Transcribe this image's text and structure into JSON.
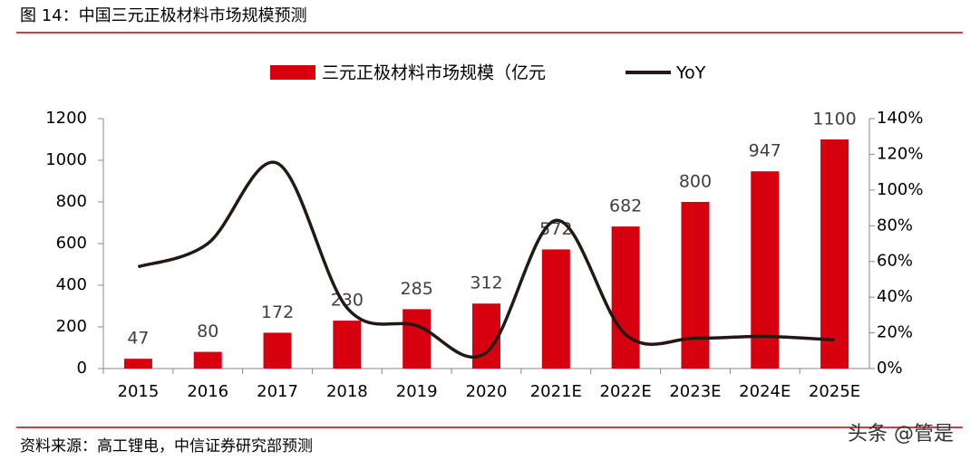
{
  "title": "图 14：中国三元正极材料市场规模预测",
  "source": "资料来源：高工锂电，中信证券研究部预测",
  "watermark": "头条 @管是",
  "chart_data": {
    "type": "bar-line",
    "categories": [
      "2015",
      "2016",
      "2017",
      "2018",
      "2019",
      "2020",
      "2021E",
      "2022E",
      "2023E",
      "2024E",
      "2025E"
    ],
    "series": [
      {
        "name": "三元正极材料市场规模（亿元",
        "type": "bar",
        "color": "#d7000f",
        "values": [
          47,
          80,
          172,
          230,
          285,
          312,
          572,
          682,
          800,
          947,
          1100
        ]
      },
      {
        "name": "YoY",
        "type": "line",
        "axis": "y2",
        "color": "#231815",
        "values": [
          57,
          70,
          115,
          34,
          24,
          9,
          83,
          19,
          17,
          18,
          16
        ]
      }
    ],
    "ylim": [
      0,
      1200
    ],
    "yticks": [
      0,
      200,
      400,
      600,
      800,
      1000,
      1200
    ],
    "y2lim": [
      0,
      140
    ],
    "y2ticks": [
      {
        "value": 0,
        "label": "0%"
      },
      {
        "value": 20,
        "label": "20%"
      },
      {
        "value": 40,
        "label": "40%"
      },
      {
        "value": 60,
        "label": "60%"
      },
      {
        "value": 80,
        "label": "80%"
      },
      {
        "value": 100,
        "label": "100%"
      },
      {
        "value": 120,
        "label": "120%"
      },
      {
        "value": 140,
        "label": "140%"
      }
    ]
  }
}
